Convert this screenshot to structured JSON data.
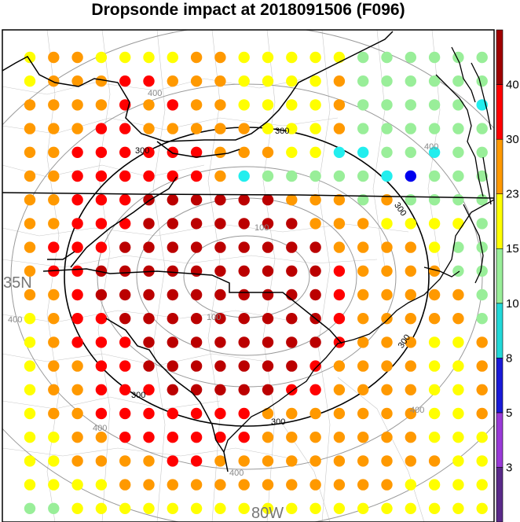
{
  "title": "Dropsonde impact at 2018091506 (F096)",
  "map": {
    "lat_label": "35N",
    "lon_label": "80W",
    "range_ring_labels": [
      "100",
      "100",
      "300",
      "300",
      "300",
      "300",
      "400",
      "400",
      "400",
      "400",
      "400",
      "400"
    ],
    "grid": {
      "rows": 20,
      "cols": 20,
      "class_colors": {
        "G": "#99ee99",
        "C": "#22eeee",
        "B": "#0000ee",
        "Y": "#ffff00",
        "O": "#ff9900",
        "R": "#ff0000",
        "M": "#bb0000",
        "D": "#800000"
      },
      "cells": [
        "YOOYYYYOOYYYYYGGGGGG",
        "YOOORROOOYYYYOGGGGGG",
        "OOOOROROOYYYYOGGGGGG",
        "OOORROOOOOYYYOGGGGGG",
        "OORRRRRROOOYYGCGGGGG",
        "OORRRRRROCGGGGGGGGGG",
        "OORRRMMMMMMOOOGOGGGG",
        "OORRRMMMMMMMOOOYYYYG",
        "ORRRMMMMMMMMMOOOOYGG",
        "ORRMMMMMMMMMMROOOOGG",
        "OORMMMMMMMMMMROOOOOG",
        "YORRMMMMMMMMMROOOOOG",
        "YORRRMMMMMMMMROOOYYO",
        "YOORRMMMMMMMROOOOYYO",
        "YOORRRMMMMMRROOOOYYO",
        "YOORRRRRRROOOOOOOYYO",
        "YYOORRRRRROOOOOOOYYY",
        "YYOOOORROOOOOOOOOOYY",
        "YYYYOOOOOOOOOOOOYYYY",
        "GGYYYYYYYYYYYYYYYYYY"
      ],
      "overrides": [
        {
          "row": 2,
          "col": 19,
          "cls": "C"
        },
        {
          "row": 4,
          "col": 13,
          "cls": "C"
        },
        {
          "row": 4,
          "col": 17,
          "cls": "C"
        },
        {
          "row": 5,
          "col": 9,
          "cls": "C"
        },
        {
          "row": 5,
          "col": 15,
          "cls": "C"
        },
        {
          "row": 5,
          "col": 16,
          "cls": "B"
        }
      ]
    }
  },
  "colorbar": {
    "tick_labels": [
      "3",
      "5",
      "8",
      "10",
      "15",
      "23",
      "30",
      "40"
    ],
    "colors": [
      "#5a2a8a",
      "#9a3ad8",
      "#1a1ad8",
      "#22d8d8",
      "#99ee99",
      "#ffff00",
      "#ff9900",
      "#ff0000",
      "#a00000"
    ]
  }
}
